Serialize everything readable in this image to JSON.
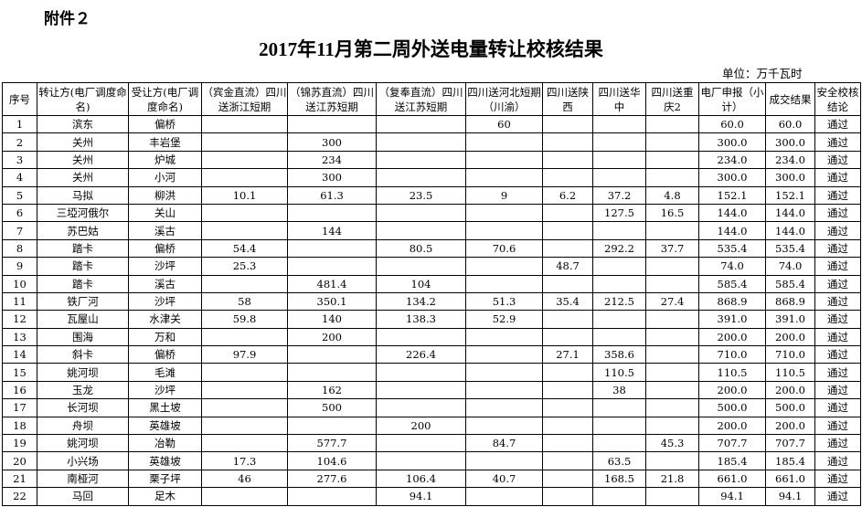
{
  "attachment_label": "附件２",
  "title": "2017年11月第二周外送电量转让校核结果",
  "unit": "单位：万千瓦时",
  "columns": [
    "序号",
    "转让方(电厂调度命名)",
    "受让方(电厂调度命名)",
    "（宾金直流）四川送浙江短期",
    "（锦苏直流）四川送江苏短期",
    "（复奉直流）四川送江苏短期",
    "四川送河北短期（川渝）",
    "四川送陕西",
    "四川送华中",
    "四川送重庆2",
    "电厂申报（小计）",
    "成交结果",
    "安全校核结论"
  ],
  "rows": [
    [
      "1",
      "滨东",
      "偏桥",
      "",
      "",
      "",
      "60",
      "",
      "",
      "",
      "60.0",
      "60.0",
      "通过"
    ],
    [
      "2",
      "关州",
      "丰岩堡",
      "",
      "300",
      "",
      "",
      "",
      "",
      "",
      "300.0",
      "300.0",
      "通过"
    ],
    [
      "3",
      "关州",
      "炉城",
      "",
      "234",
      "",
      "",
      "",
      "",
      "",
      "234.0",
      "234.0",
      "通过"
    ],
    [
      "4",
      "关州",
      "小河",
      "",
      "300",
      "",
      "",
      "",
      "",
      "",
      "300.0",
      "300.0",
      "通过"
    ],
    [
      "5",
      "马拟",
      "柳洪",
      "10.1",
      "61.3",
      "23.5",
      "9",
      "6.2",
      "37.2",
      "4.8",
      "152.1",
      "152.1",
      "通过"
    ],
    [
      "6",
      "三埡河俄尔",
      "关山",
      "",
      "",
      "",
      "",
      "",
      "127.5",
      "16.5",
      "144.0",
      "144.0",
      "通过"
    ],
    [
      "7",
      "苏巴姑",
      "溪古",
      "",
      "144",
      "",
      "",
      "",
      "",
      "",
      "144.0",
      "144.0",
      "通过"
    ],
    [
      "8",
      "踏卡",
      "偏桥",
      "54.4",
      "",
      "80.5",
      "70.6",
      "",
      "292.2",
      "37.7",
      "535.4",
      "535.4",
      "通过"
    ],
    [
      "9",
      "踏卡",
      "沙坪",
      "25.3",
      "",
      "",
      "",
      "48.7",
      "",
      "",
      "74.0",
      "74.0",
      "通过"
    ],
    [
      "10",
      "踏卡",
      "溪古",
      "",
      "481.4",
      "104",
      "",
      "",
      "",
      "",
      "585.4",
      "585.4",
      "通过"
    ],
    [
      "11",
      "铁厂河",
      "沙坪",
      "58",
      "350.1",
      "134.2",
      "51.3",
      "35.4",
      "212.5",
      "27.4",
      "868.9",
      "868.9",
      "通过"
    ],
    [
      "12",
      "瓦屋山",
      "水津关",
      "59.8",
      "140",
      "138.3",
      "52.9",
      "",
      "",
      "",
      "391.0",
      "391.0",
      "通过"
    ],
    [
      "13",
      "围海",
      "万和",
      "",
      "200",
      "",
      "",
      "",
      "",
      "",
      "200.0",
      "200.0",
      "通过"
    ],
    [
      "14",
      "斜卡",
      "偏桥",
      "97.9",
      "",
      "226.4",
      "",
      "27.1",
      "358.6",
      "",
      "710.0",
      "710.0",
      "通过"
    ],
    [
      "15",
      "姚河坝",
      "毛滩",
      "",
      "",
      "",
      "",
      "",
      "110.5",
      "",
      "110.5",
      "110.5",
      "通过"
    ],
    [
      "16",
      "玉龙",
      "沙坪",
      "",
      "162",
      "",
      "",
      "",
      "38",
      "",
      "200.0",
      "200.0",
      "通过"
    ],
    [
      "17",
      "长河坝",
      "黑土坡",
      "",
      "500",
      "",
      "",
      "",
      "",
      "",
      "500.0",
      "500.0",
      "通过"
    ],
    [
      "18",
      "舟坝",
      "英雄坡",
      "",
      "",
      "200",
      "",
      "",
      "",
      "",
      "200.0",
      "200.0",
      "通过"
    ],
    [
      "19",
      "姚河坝",
      "冶勒",
      "",
      "577.7",
      "",
      "84.7",
      "",
      "",
      "45.3",
      "707.7",
      "707.7",
      "通过"
    ],
    [
      "20",
      "小兴场",
      "英雄坡",
      "17.3",
      "104.6",
      "",
      "",
      "",
      "63.5",
      "",
      "185.4",
      "185.4",
      "通过"
    ],
    [
      "21",
      "南桠河",
      "栗子坪",
      "46",
      "277.6",
      "106.4",
      "40.7",
      "",
      "168.5",
      "21.8",
      "661.0",
      "661.0",
      "通过"
    ],
    [
      "22",
      "马回",
      "足木",
      "",
      "",
      "94.1",
      "",
      "",
      "",
      "",
      "94.1",
      "94.1",
      "通过"
    ]
  ]
}
